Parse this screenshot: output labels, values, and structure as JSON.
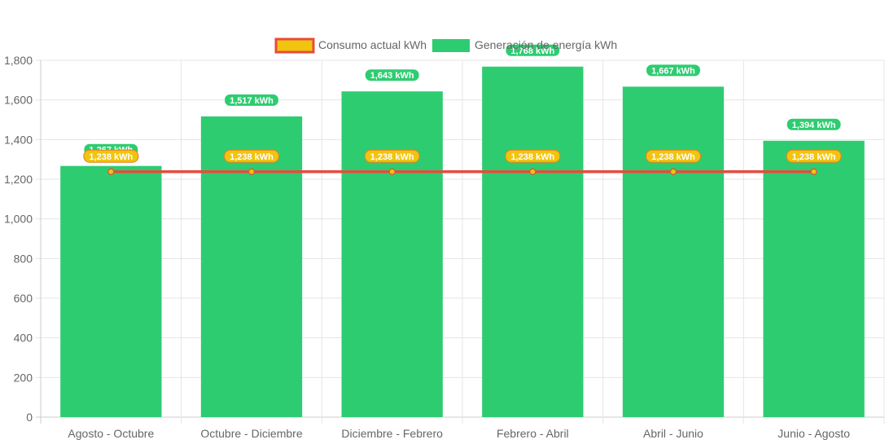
{
  "chart_data": {
    "type": "bar",
    "categories": [
      "Agosto - Octubre",
      "Octubre - Diciembre",
      "Diciembre - Febrero",
      "Febrero - Abril",
      "Abril - Junio",
      "Junio - Agosto"
    ],
    "series": [
      {
        "name": "Consumo actual kWh",
        "type": "line",
        "values": [
          1238,
          1238,
          1238,
          1238,
          1238,
          1238
        ],
        "labels": [
          "1,238 kWh",
          "1,238 kWh",
          "1,238 kWh",
          "1,238 kWh",
          "1,238 kWh",
          "1,238 kWh"
        ],
        "color": "#e74c3c",
        "fill_color": "#f1c40f"
      },
      {
        "name": "Generación de energía kWh",
        "type": "bar",
        "values": [
          1267,
          1517,
          1643,
          1768,
          1667,
          1394
        ],
        "labels": [
          "1,267 kWh",
          "1,517 kWh",
          "1,643 kWh",
          "1,768 kWh",
          "1,667 kWh",
          "1,394 kWh"
        ],
        "color": "#2ecc71"
      }
    ],
    "yticks": [
      "0",
      "200",
      "400",
      "600",
      "800",
      "1,000",
      "1,200",
      "1,400",
      "1,600",
      "1,800"
    ],
    "ylim": [
      0,
      1800
    ],
    "grid": true,
    "legend_position": "top"
  }
}
